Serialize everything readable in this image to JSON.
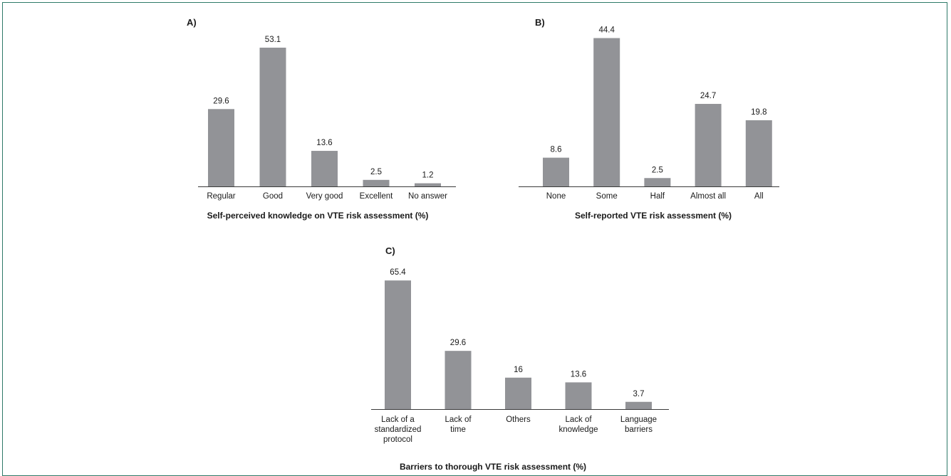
{
  "chart_data": [
    {
      "type": "bar",
      "panel_label": "A)",
      "title": "",
      "xlabel": "Self-perceived knowledge on VTE risk assessment (%)",
      "ylabel": "",
      "categories": [
        "Regular",
        "Good",
        "Very good",
        "Excellent",
        "No answer"
      ],
      "values": [
        29.6,
        53.1,
        13.6,
        2.5,
        1.2
      ],
      "ylim": [
        0,
        55
      ],
      "bar_color": "#929397"
    },
    {
      "type": "bar",
      "panel_label": "B)",
      "title": "",
      "xlabel": "Self-reported VTE risk assessment (%)",
      "ylabel": "",
      "categories": [
        "None",
        "Some",
        "Half",
        "Almost all",
        "All"
      ],
      "values": [
        8.6,
        44.4,
        2.5,
        24.7,
        19.8
      ],
      "ylim": [
        0,
        46
      ],
      "bar_color": "#929397"
    },
    {
      "type": "bar",
      "panel_label": "C)",
      "title": "",
      "xlabel": "Barriers to thorough VTE risk assessment (%)",
      "ylabel": "",
      "categories": [
        [
          "Lack of a",
          "standardized",
          "protocol"
        ],
        [
          "Lack of",
          "time"
        ],
        [
          "Others"
        ],
        [
          "Lack of",
          "knowledge"
        ],
        [
          "Language",
          "barriers"
        ]
      ],
      "values": [
        65.4,
        29.6,
        16,
        13.6,
        3.7
      ],
      "ylim": [
        0,
        68
      ],
      "bar_color": "#929397"
    }
  ]
}
